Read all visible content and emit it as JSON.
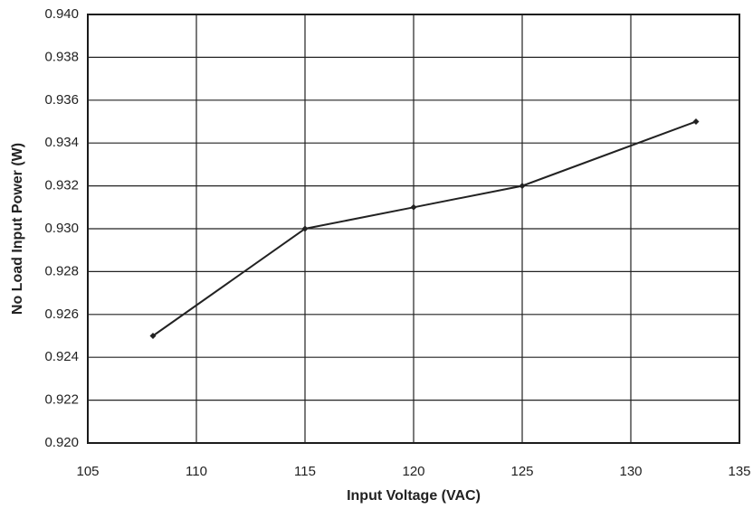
{
  "chart_data": {
    "type": "line",
    "x_label": "Input Voltage (VAC)",
    "y_label": "No Load Input Power (W)",
    "series": [
      {
        "color": "#222222",
        "x": [
          108,
          115,
          120,
          125,
          133
        ],
        "values": [
          0.925,
          0.93,
          0.931,
          0.932,
          0.935
        ]
      }
    ],
    "xlim": [
      105,
      135
    ],
    "xticks": [
      105,
      110,
      115,
      120,
      125,
      130,
      135
    ],
    "ylim": [
      0.92,
      0.94
    ],
    "yticks": [
      {
        "value": 0.92,
        "label": "0.920"
      },
      0.922,
      0.924,
      0.926,
      0.928,
      {
        "value": 0.93,
        "label": "0.930"
      },
      0.932,
      0.934,
      0.936,
      0.938,
      {
        "value": 0.94,
        "label": "0.940"
      }
    ],
    "grid": true
  }
}
